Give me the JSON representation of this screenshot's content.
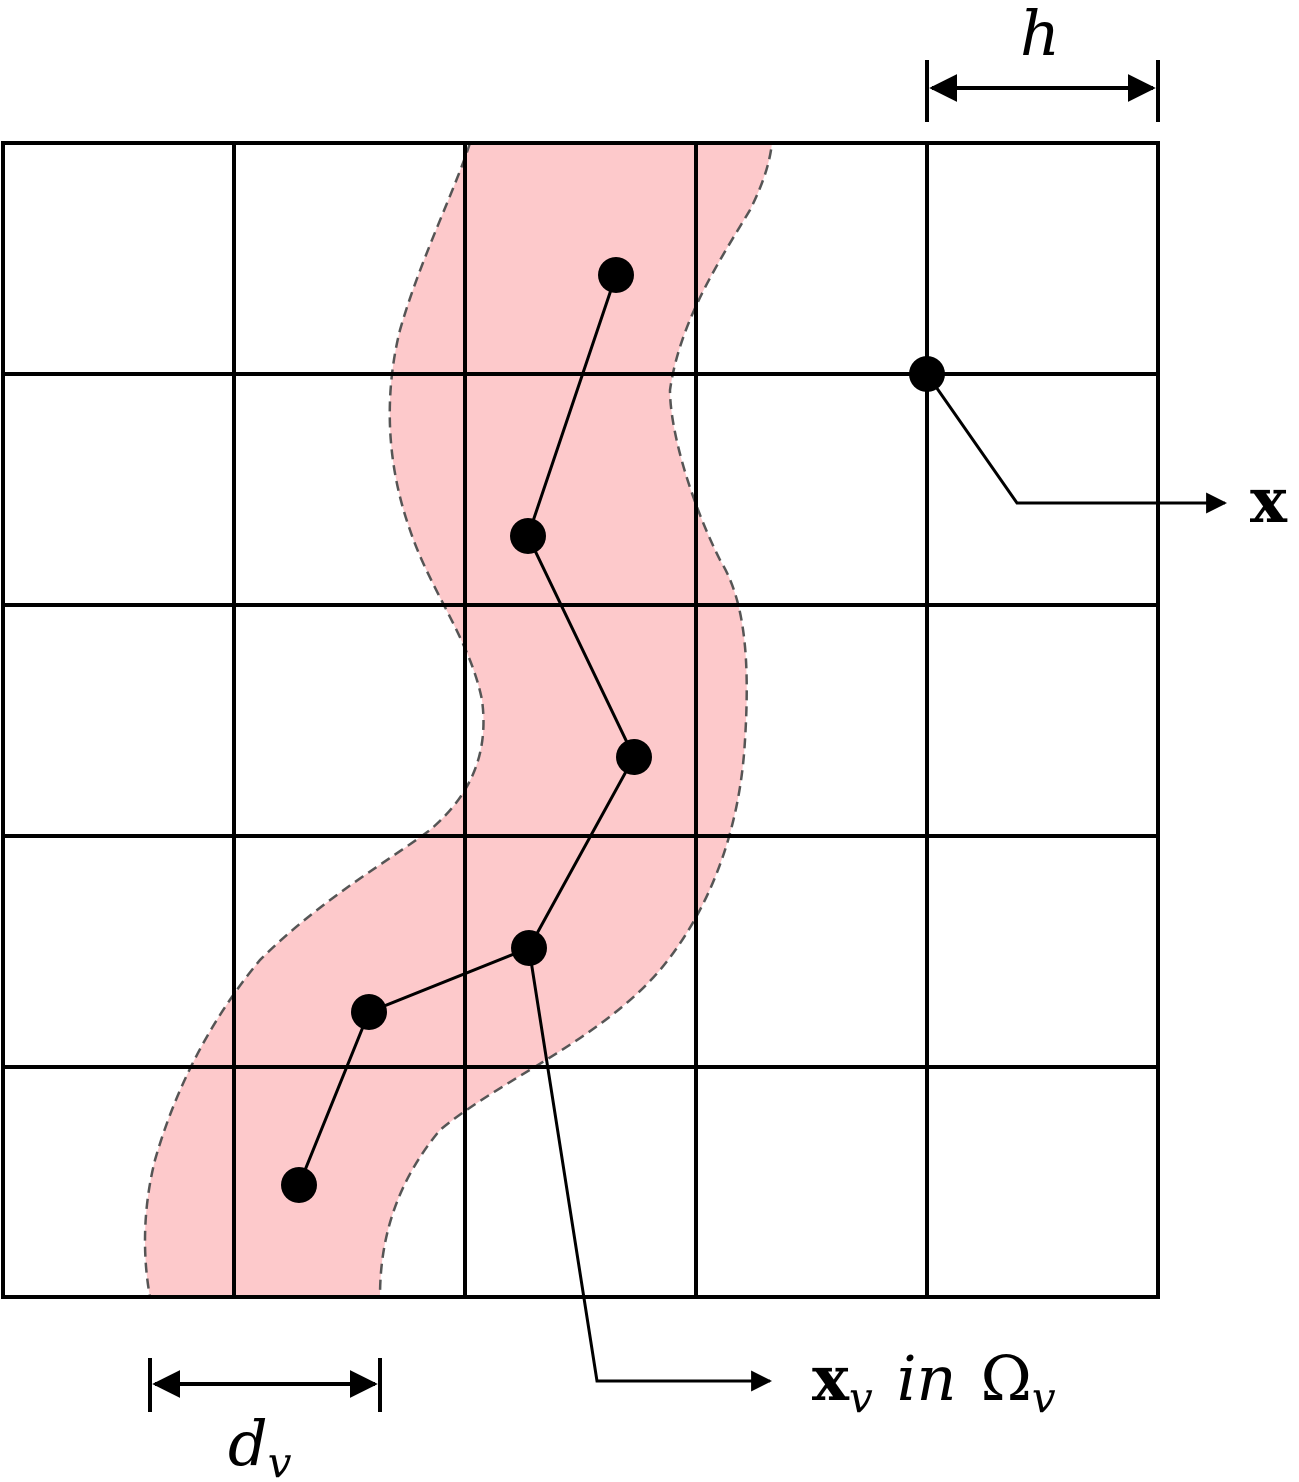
{
  "labels": {
    "h": "h",
    "x": "x",
    "xv": {
      "base": "x",
      "sub": "v",
      "word": "in",
      "omega": "Ω",
      "omega_sub": "v"
    },
    "dv": {
      "base": "d",
      "sub": "v"
    }
  }
}
